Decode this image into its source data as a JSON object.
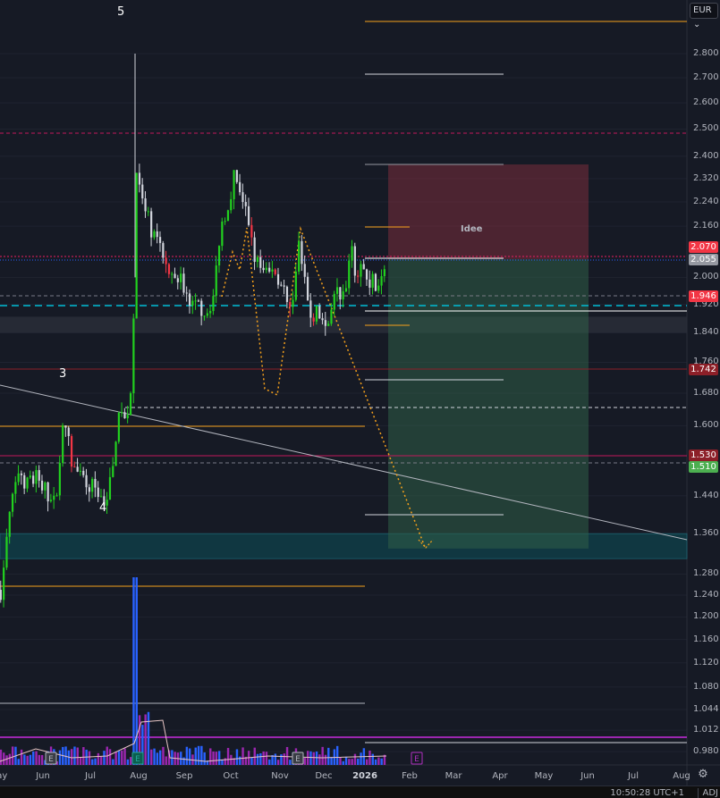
{
  "currency_selector": "EUR ⌄",
  "settings_icon": "gear-icon",
  "footer": {
    "clock": "10:50:28 UTC+1",
    "adj": "ADJ"
  },
  "idea_label": "Idee",
  "wave_labels": [
    "5",
    "3",
    "4"
  ],
  "price_labels": [
    {
      "text": "2.070",
      "color": "#f23645"
    },
    {
      "text": "2.055",
      "color": "#9598a1"
    },
    {
      "text": "1.946",
      "color": "#f23645"
    },
    {
      "text": "1.742",
      "color": "#8c1f28"
    },
    {
      "text": "1.530",
      "color": "#8c1f28"
    },
    {
      "text": "1.510",
      "color": "#4caf50"
    }
  ],
  "chart_data": {
    "type": "candlestick",
    "y_scale": "log",
    "ylim": [
      0.98,
      2.9
    ],
    "y_ticks": [
      "2.800",
      "2.700",
      "2.600",
      "2.500",
      "2.400",
      "2.320",
      "2.240",
      "2.160",
      "2.000",
      "1.920",
      "1.840",
      "1.760",
      "1.680",
      "1.600",
      "1.440",
      "1.360",
      "1.280",
      "1.240",
      "1.200",
      "1.160",
      "1.120",
      "1.080",
      "1.044",
      "1.012",
      "0.980"
    ],
    "x_ticks": [
      "May",
      "Jun",
      "Jul",
      "Aug",
      "Sep",
      "Oct",
      "Nov",
      "Dec",
      "2026",
      "Feb",
      "Mar",
      "Apr",
      "May",
      "Jun",
      "Jul",
      "Aug"
    ],
    "close": [
      [
        "2025-05-03",
        1.25
      ],
      [
        "2025-05-09",
        1.4
      ],
      [
        "2025-05-15",
        1.5
      ],
      [
        "2025-05-21",
        1.46
      ],
      [
        "2025-05-27",
        1.48
      ],
      [
        "2025-06-02",
        1.45
      ],
      [
        "2025-06-08",
        1.42
      ],
      [
        "2025-06-13",
        1.58
      ],
      [
        "2025-06-15",
        1.6
      ],
      [
        "2025-06-20",
        1.5
      ],
      [
        "2025-06-26",
        1.47
      ],
      [
        "2025-07-02",
        1.46
      ],
      [
        "2025-07-08",
        1.45
      ],
      [
        "2025-07-11",
        1.43
      ],
      [
        "2025-07-17",
        1.5
      ],
      [
        "2025-07-20",
        1.65
      ],
      [
        "2025-07-25",
        1.62
      ],
      [
        "2025-07-30",
        1.7
      ],
      [
        "2025-07-31",
        2.15
      ],
      [
        "2025-08-02",
        2.45
      ],
      [
        "2025-08-04",
        2.25
      ],
      [
        "2025-08-09",
        2.18
      ],
      [
        "2025-08-15",
        2.1
      ],
      [
        "2025-08-21",
        2.05
      ],
      [
        "2025-08-27",
        2.02
      ],
      [
        "2025-09-02",
        1.98
      ],
      [
        "2025-09-06",
        1.9
      ],
      [
        "2025-09-11",
        1.92
      ],
      [
        "2025-09-17",
        1.9
      ],
      [
        "2025-09-22",
        1.95
      ],
      [
        "2025-09-26",
        2.15
      ],
      [
        "2025-10-02",
        2.25
      ],
      [
        "2025-10-06",
        2.35
      ],
      [
        "2025-10-10",
        2.22
      ],
      [
        "2025-10-14",
        2.2
      ],
      [
        "2025-10-20",
        2.05
      ],
      [
        "2025-10-26",
        2.0
      ],
      [
        "2025-11-01",
        2.02
      ],
      [
        "2025-11-07",
        1.98
      ],
      [
        "2025-11-11",
        1.88
      ],
      [
        "2025-11-14",
        1.92
      ],
      [
        "2025-11-17",
        2.12
      ],
      [
        "2025-11-22",
        1.95
      ],
      [
        "2025-11-26",
        1.88
      ],
      [
        "2025-11-30",
        1.9
      ],
      [
        "2025-12-05",
        1.86
      ],
      [
        "2025-12-09",
        1.92
      ],
      [
        "2025-12-14",
        1.96
      ],
      [
        "2025-12-18",
        1.93
      ],
      [
        "2025-12-22",
        2.08
      ],
      [
        "2025-12-26",
        2.0
      ],
      [
        "2025-12-30",
        2.03
      ],
      [
        "2026-01-03",
        2.0
      ],
      [
        "2026-01-08",
        1.98
      ],
      [
        "2026-01-12",
        1.99
      ],
      [
        "2026-01-15",
        2.06
      ]
    ],
    "position": {
      "type": "long",
      "entry": 2.055,
      "stop": 2.37,
      "target": 1.33
    },
    "support_zone": [
      1.31,
      1.36
    ],
    "resistance_zone": [
      1.84,
      1.885
    ],
    "colors": {
      "up": "#22d11f",
      "down": "#d1d4dc",
      "red": "#f23645",
      "volume_a": "#2962ff",
      "volume_b": "#9c27b0",
      "orange": "#f7a21b",
      "teal": "#00bcd4"
    }
  }
}
